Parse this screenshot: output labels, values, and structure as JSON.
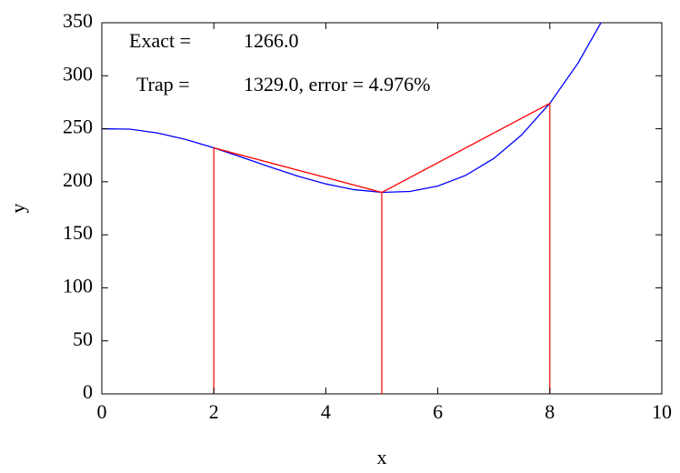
{
  "chart_data": {
    "type": "line",
    "xlabel": "x",
    "ylabel": "y",
    "series": [
      {
        "name": "Exact",
        "color": "#0000ff",
        "x": [
          0,
          0.5,
          1,
          1.5,
          2,
          2.5,
          3,
          3.5,
          4,
          4.5,
          5,
          5.5,
          6,
          6.5,
          7,
          7.5,
          8,
          8.5,
          9
        ],
        "values": [
          250,
          249.625,
          246,
          239.875,
          232,
          223.125,
          214,
          205.375,
          198,
          192.625,
          190,
          190.875,
          196,
          206.125,
          222,
          244.375,
          274,
          311.625,
          358
        ]
      },
      {
        "name": "Trap",
        "color": "#ff0000",
        "x": [
          2,
          5,
          8
        ],
        "values": [
          232,
          190,
          274
        ]
      }
    ],
    "annotations": [
      {
        "label": "Exact =",
        "text": "1266.0",
        "color": "#0000ff"
      },
      {
        "label": "Trap =",
        "text": "1329.0, error = 4.976%",
        "color": "#ff0000"
      }
    ],
    "xlim": [
      0,
      10
    ],
    "xticks": [
      0,
      2,
      4,
      6,
      8,
      10
    ],
    "ylim": [
      0,
      350
    ],
    "yticks": [
      0,
      50,
      100,
      150,
      200,
      250,
      300,
      350
    ]
  }
}
